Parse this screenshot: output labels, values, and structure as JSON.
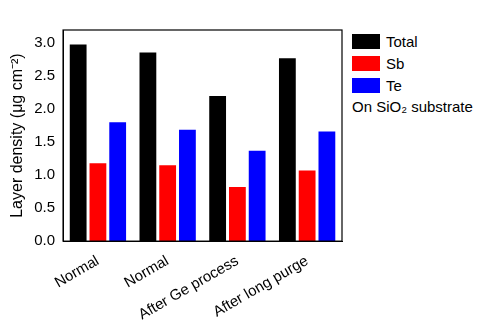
{
  "chart_data": {
    "type": "bar",
    "categories": [
      "Normal",
      "Normal",
      "After Ge process",
      "After long purge"
    ],
    "series": [
      {
        "name": "Total",
        "color": "#000000",
        "values": [
          2.98,
          2.86,
          2.2,
          2.77
        ]
      },
      {
        "name": "Sb",
        "color": "#ff0000",
        "values": [
          1.18,
          1.15,
          0.82,
          1.07
        ]
      },
      {
        "name": "Te",
        "color": "#0000ff",
        "values": [
          1.8,
          1.69,
          1.37,
          1.66
        ]
      }
    ],
    "y_label": "Layer density (μg cm⁻²)",
    "annotations": [
      "On SiO₂ substrate"
    ],
    "ylim": [
      0,
      3.2
    ],
    "yticks": [
      {
        "value": 0,
        "label": "0.0"
      },
      {
        "value": 0.5,
        "label": "0.5"
      },
      {
        "value": 1,
        "label": "1.0"
      },
      {
        "value": 1.5,
        "label": "1.5"
      },
      {
        "value": 2,
        "label": "2.0"
      },
      {
        "value": 2.5,
        "label": "2.5"
      },
      {
        "value": 3,
        "label": "3.0"
      }
    ],
    "grid": false,
    "legend": "right"
  }
}
